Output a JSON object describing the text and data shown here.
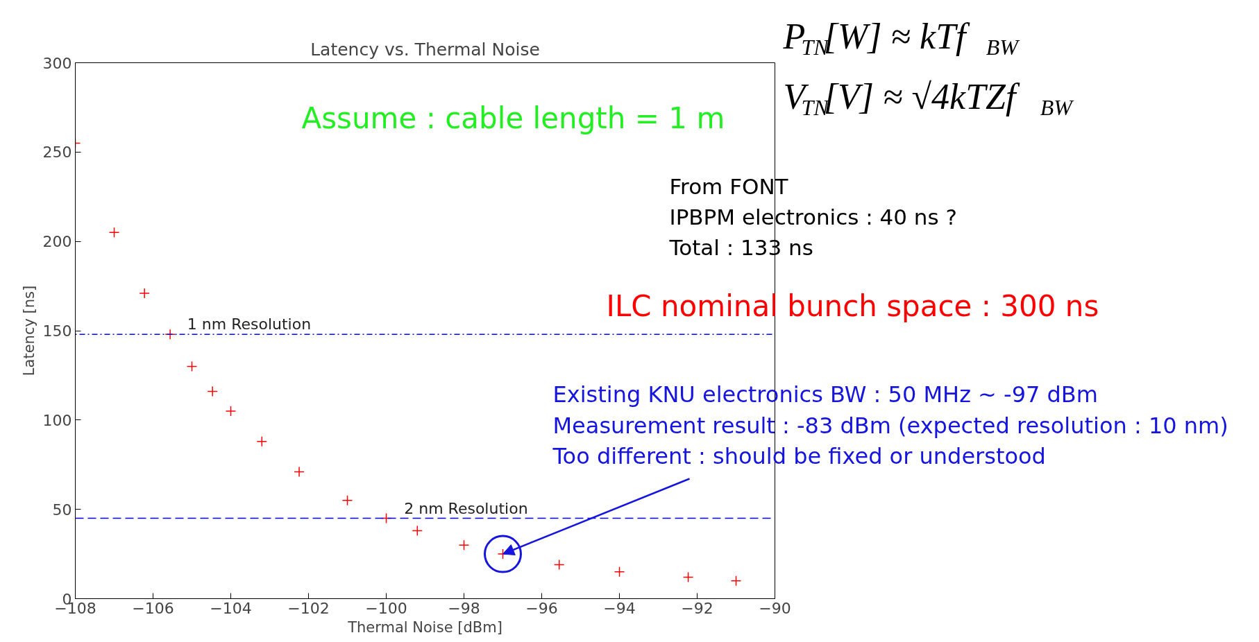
{
  "chart_data": {
    "type": "scatter",
    "title": "Latency vs. Thermal Noise",
    "xlabel": "Thermal Noise [dBm]",
    "ylabel": "Latency [ns]",
    "x": [
      -108,
      -107.0,
      -106.22,
      -105.56,
      -105.0,
      -104.47,
      -104.0,
      -103.2,
      -102.24,
      -101.0,
      -100.0,
      -99.2,
      -98.0,
      -97.0,
      -95.55,
      -94.0,
      -92.23,
      -91.0
    ],
    "series": [
      {
        "color": "#ff0000",
        "values": [
          255,
          205,
          171,
          148,
          130,
          116,
          105,
          88,
          71,
          55,
          45,
          38,
          30,
          25,
          19,
          15,
          12,
          10
        ]
      }
    ],
    "marker": "cross",
    "grid": false,
    "xlim": [
      -108,
      -90
    ],
    "ylim": [
      0,
      300
    ],
    "xticks": [
      {
        "value": -108,
        "label": "−108"
      },
      {
        "value": -106,
        "label": "−106"
      },
      {
        "value": -104,
        "label": "−104"
      },
      {
        "value": -102,
        "label": "−102"
      },
      {
        "value": -100,
        "label": "−100"
      },
      {
        "value": -98,
        "label": "−98"
      },
      {
        "value": -96,
        "label": "−96"
      },
      {
        "value": -94,
        "label": "−94"
      },
      {
        "value": -92,
        "label": "−92"
      },
      {
        "value": -90,
        "label": "−90"
      }
    ],
    "yticks": [
      0,
      50,
      100,
      150,
      200,
      250,
      300
    ],
    "ref_lines": [
      {
        "axis": "y",
        "value": 148,
        "label": "1 nm Resolution",
        "color": "#0000ff",
        "line_style": "dotted"
      },
      {
        "axis": "y",
        "value": 45,
        "label": "2 nm Resolution",
        "color": "#0000ff",
        "line_style": "dashed"
      }
    ],
    "annotations": [
      "Assume : cable length = 1 m",
      "P$_{TN}$[W] ≈ kTf$_{BW}$",
      "V$_{TN}$[V] ≈ √4kTZf$_{BW}$",
      "From FONT",
      "IPBPM electronics : 40 ns ?",
      "Total : 133 ns",
      "ILC nominal bunch space : 300 ns",
      "Existing KNU electronics BW : 50 MHz ~ -97 dBm",
      "Measurement result : -83 dBm (expected resolution : 10 nm)",
      {
        "text": "Too different : should be fixed or understood",
        "x": -97,
        "y": 25
      }
    ]
  }
}
